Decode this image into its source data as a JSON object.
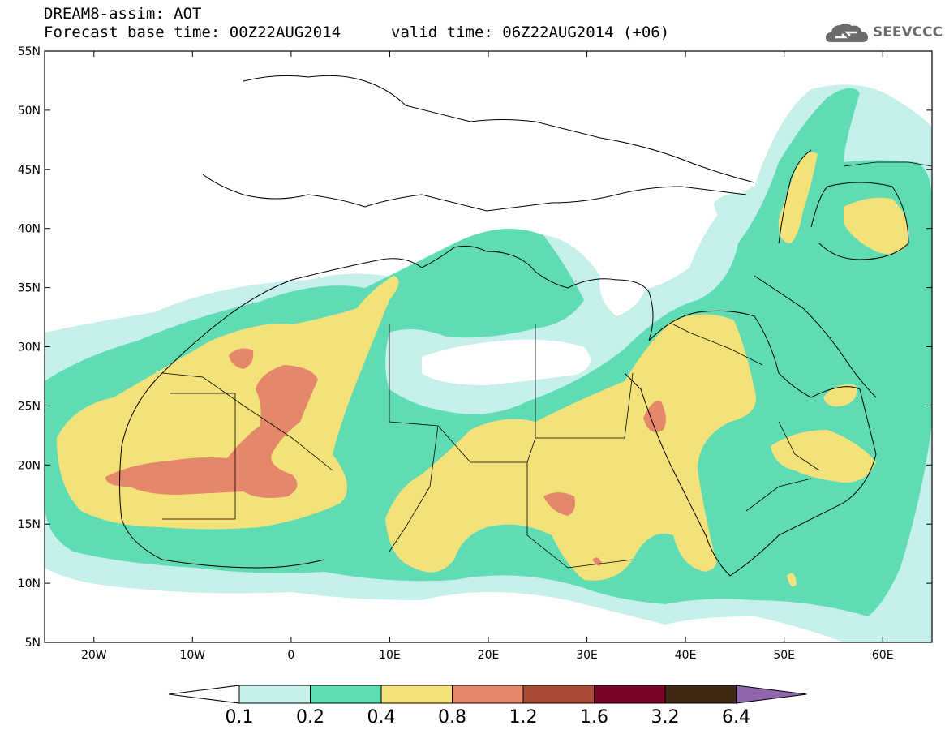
{
  "header": {
    "line1": "DREAM8-assim: AOT",
    "line2": "Forecast base time: 00Z22AUG2014",
    "line3": "valid time: 06Z22AUG2014 (+06)"
  },
  "logo": {
    "text": "SEEVCCC",
    "icon": "cloud-logo-icon"
  },
  "map": {
    "lon_range": [
      -25,
      65
    ],
    "lat_range": [
      5,
      55
    ],
    "x_ticks": [
      {
        "lon": -20,
        "label": "20W"
      },
      {
        "lon": -10,
        "label": "10W"
      },
      {
        "lon": 0,
        "label": "0"
      },
      {
        "lon": 10,
        "label": "10E"
      },
      {
        "lon": 20,
        "label": "20E"
      },
      {
        "lon": 30,
        "label": "30E"
      },
      {
        "lon": 40,
        "label": "40E"
      },
      {
        "lon": 50,
        "label": "50E"
      },
      {
        "lon": 60,
        "label": "60E"
      }
    ],
    "y_ticks": [
      {
        "lat": 55,
        "label": "55N"
      },
      {
        "lat": 50,
        "label": "50N"
      },
      {
        "lat": 45,
        "label": "45N"
      },
      {
        "lat": 40,
        "label": "40N"
      },
      {
        "lat": 35,
        "label": "35N"
      },
      {
        "lat": 30,
        "label": "30N"
      },
      {
        "lat": 25,
        "label": "25N"
      },
      {
        "lat": 20,
        "label": "20N"
      },
      {
        "lat": 15,
        "label": "15N"
      },
      {
        "lat": 10,
        "label": "10N"
      },
      {
        "lat": 5,
        "label": "5N"
      }
    ]
  },
  "colorbar": {
    "labels": [
      "0.1",
      "0.2",
      "0.4",
      "0.8",
      "1.2",
      "1.6",
      "3.2",
      "6.4"
    ],
    "colors": [
      "#ffffff",
      "#c6f0ea",
      "#5fdcb4",
      "#f3e27a",
      "#e5876a",
      "#a84a38",
      "#7a0426",
      "#3e2a14",
      "#8f66aa"
    ]
  },
  "colors": {
    "aot_0_1": "#c6f0ea",
    "aot_0_2": "#5fdcb4",
    "aot_0_4": "#f3e27a",
    "aot_0_8": "#e5876a"
  }
}
